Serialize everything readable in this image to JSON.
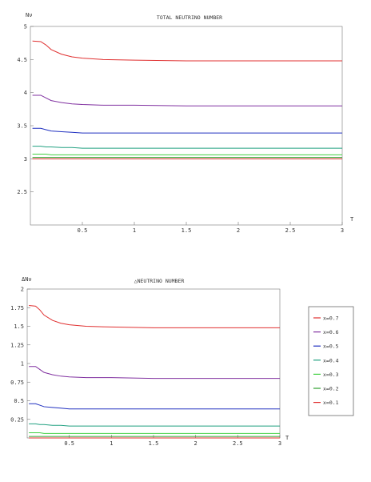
{
  "chart_data": [
    {
      "type": "line",
      "title": "TOTAL NEUTRINO NUMBER",
      "xlabel": "T",
      "ylabel": "Nν",
      "xlim": [
        0,
        3
      ],
      "ylim": [
        2,
        5
      ],
      "xticks": [
        0.5,
        1,
        1.5,
        2,
        2.5,
        3
      ],
      "xtick_labels": [
        "0.5",
        "1",
        "1.5",
        "2",
        "2.5",
        "3"
      ],
      "yticks": [
        2.5,
        3,
        3.5,
        4,
        4.5,
        5
      ],
      "ytick_labels": [
        "2.5",
        "3",
        "3.5",
        "4",
        "4.5",
        "5"
      ],
      "x": [
        0.02,
        0.1,
        0.15,
        0.2,
        0.3,
        0.4,
        0.5,
        0.7,
        1.0,
        1.5,
        2.0,
        2.5,
        3.0
      ],
      "series": [
        {
          "color": "#e03030",
          "values": [
            4.78,
            4.77,
            4.72,
            4.65,
            4.58,
            4.54,
            4.52,
            4.5,
            4.49,
            4.48,
            4.48,
            4.48,
            4.48
          ]
        },
        {
          "color": "#8030a0",
          "values": [
            3.96,
            3.96,
            3.92,
            3.88,
            3.85,
            3.83,
            3.82,
            3.81,
            3.81,
            3.8,
            3.8,
            3.8,
            3.8
          ]
        },
        {
          "color": "#2030c0",
          "values": [
            3.46,
            3.46,
            3.44,
            3.42,
            3.41,
            3.4,
            3.39,
            3.39,
            3.39,
            3.39,
            3.39,
            3.39,
            3.39
          ]
        },
        {
          "color": "#20a080",
          "values": [
            3.19,
            3.19,
            3.18,
            3.18,
            3.17,
            3.17,
            3.16,
            3.16,
            3.16,
            3.16,
            3.16,
            3.16,
            3.16
          ]
        },
        {
          "color": "#40d040",
          "values": [
            3.07,
            3.07,
            3.07,
            3.06,
            3.06,
            3.06,
            3.06,
            3.06,
            3.06,
            3.06,
            3.06,
            3.06,
            3.06
          ]
        },
        {
          "color": "#30a030",
          "values": [
            3.02,
            3.02,
            3.02,
            3.02,
            3.02,
            3.02,
            3.02,
            3.02,
            3.02,
            3.02,
            3.02,
            3.02,
            3.02
          ]
        },
        {
          "color": "#e03030",
          "values": [
            3.0,
            3.0,
            3.0,
            3.0,
            3.0,
            3.0,
            3.0,
            3.0,
            3.0,
            3.0,
            3.0,
            3.0,
            3.0
          ]
        }
      ]
    },
    {
      "type": "line",
      "title": "△NEUTRINO NUMBER",
      "xlabel": "T",
      "ylabel": "ΔNν",
      "xlim": [
        0,
        3
      ],
      "ylim": [
        0,
        2
      ],
      "xticks": [
        0.5,
        1,
        1.5,
        2,
        2.5,
        3
      ],
      "xtick_labels": [
        "0.5",
        "1",
        "1.5",
        "2",
        "2.5",
        "3"
      ],
      "yticks": [
        0.25,
        0.5,
        0.75,
        1,
        1.25,
        1.5,
        1.75,
        2
      ],
      "ytick_labels": [
        "0.25",
        "0.5",
        "0.75",
        "1",
        "1.25",
        "1.5",
        "1.75",
        "2"
      ],
      "x": [
        0.02,
        0.1,
        0.15,
        0.2,
        0.3,
        0.4,
        0.5,
        0.7,
        1.0,
        1.5,
        2.0,
        2.5,
        3.0
      ],
      "legend_position": "right",
      "series": [
        {
          "name": "x=0.7",
          "color": "#e03030",
          "values": [
            1.78,
            1.77,
            1.72,
            1.65,
            1.58,
            1.54,
            1.52,
            1.5,
            1.49,
            1.48,
            1.48,
            1.48,
            1.48
          ]
        },
        {
          "name": "x=0.6",
          "color": "#8030a0",
          "values": [
            0.96,
            0.96,
            0.92,
            0.88,
            0.85,
            0.83,
            0.82,
            0.81,
            0.81,
            0.8,
            0.8,
            0.8,
            0.8
          ]
        },
        {
          "name": "x=0.5",
          "color": "#2030c0",
          "values": [
            0.46,
            0.46,
            0.44,
            0.42,
            0.41,
            0.4,
            0.39,
            0.39,
            0.39,
            0.39,
            0.39,
            0.39,
            0.39
          ]
        },
        {
          "name": "x=0.4",
          "color": "#20a080",
          "values": [
            0.19,
            0.19,
            0.18,
            0.18,
            0.17,
            0.17,
            0.16,
            0.16,
            0.16,
            0.16,
            0.16,
            0.16,
            0.16
          ]
        },
        {
          "name": "x=0.3",
          "color": "#40d040",
          "values": [
            0.07,
            0.07,
            0.07,
            0.06,
            0.06,
            0.06,
            0.06,
            0.06,
            0.06,
            0.06,
            0.06,
            0.06,
            0.06
          ]
        },
        {
          "name": "x=0.2",
          "color": "#30a030",
          "values": [
            0.02,
            0.02,
            0.02,
            0.02,
            0.02,
            0.02,
            0.02,
            0.02,
            0.02,
            0.02,
            0.02,
            0.02,
            0.02
          ]
        },
        {
          "name": "x=0.1",
          "color": "#e03030",
          "values": [
            0.0,
            0.0,
            0.0,
            0.0,
            0.0,
            0.0,
            0.0,
            0.0,
            0.0,
            0.0,
            0.0,
            0.0,
            0.0
          ]
        }
      ]
    }
  ]
}
